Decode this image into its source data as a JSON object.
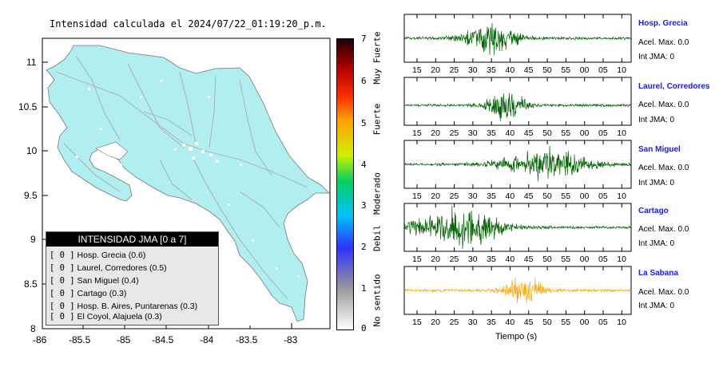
{
  "map": {
    "title": "Intensidad calculada el 2024/07/22_01:19:20_p.m.",
    "y_ticks": [
      "11",
      "10.5",
      "10",
      "9.5",
      "9",
      "8.5",
      "8"
    ],
    "x_ticks": [
      "-86",
      "-85.5",
      "-85",
      "-84.5",
      "-84",
      "-83.5",
      "-83"
    ]
  },
  "legend": {
    "header": "INTENSIDAD JMA [0 a 7]",
    "items": [
      {
        "tag": "[ 0 ]",
        "label": "Hosp. Grecia (0.6)"
      },
      {
        "tag": "[ 0 ]",
        "label": "Laurel, Corredores (0.5)"
      },
      {
        "tag": "[ 0 ]",
        "label": "San Miguel (0.4)"
      },
      {
        "tag": "[ 0 ]",
        "label": "Cartago (0.3)"
      },
      {
        "tag": "[ 0 ]",
        "label": "Hosp. B. Aires, Puntarenas (0.3)"
      },
      {
        "tag": "[ 0 ]",
        "label": "El Coyol, Alajuela (0.3)"
      }
    ]
  },
  "scale": {
    "numbers": [
      "7",
      "6",
      "5",
      "4",
      "3",
      "2",
      "1",
      "0"
    ],
    "words": [
      "Muy Fuerte",
      "Fuerte",
      "Moderado",
      "Debil",
      "No sentido"
    ]
  },
  "waveforms": {
    "x_title": "Tiempo (s)",
    "time_ticks": [
      "15",
      "20",
      "25",
      "30",
      "35",
      "40",
      "45",
      "50",
      "55",
      "00",
      "05",
      "10"
    ],
    "stations": [
      {
        "name": "Hosp. Grecia",
        "acc": "Acel. Max. 0.0",
        "int": "Int JMA: 0",
        "color": "#006400"
      },
      {
        "name": "Laurel, Corredores",
        "acc": "Acel. Max. 0.0",
        "int": "Int JMA: 0",
        "color": "#006400"
      },
      {
        "name": "San Miguel",
        "acc": "Acel. Max. 0.0",
        "int": "Int JMA: 0",
        "color": "#006400"
      },
      {
        "name": "Cartago",
        "acc": "Acel. Max. 0.0",
        "int": "Int JMA: 0",
        "color": "#006400"
      },
      {
        "name": "La Sabana",
        "acc": "Acel. Max. 0.0",
        "int": "Int JMA: 0",
        "color": "#ffa500"
      }
    ]
  },
  "colors": {
    "land": "#b0eef0",
    "roads": "#aaaaaa"
  }
}
